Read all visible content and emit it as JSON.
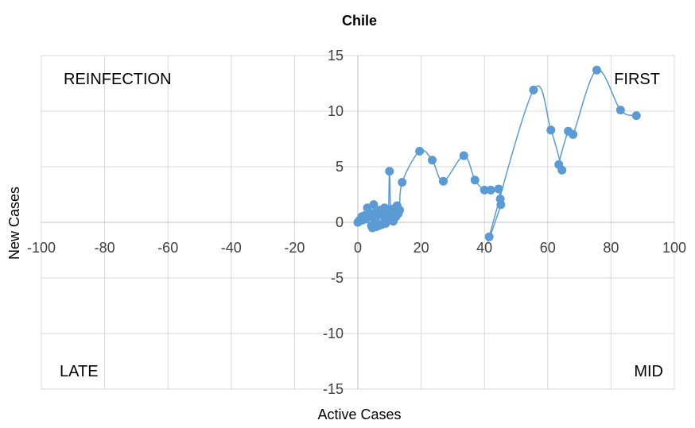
{
  "chart_data": {
    "type": "scatter",
    "title": "Chile",
    "xlabel": "Active Cases",
    "ylabel": "New Cases",
    "xlim": [
      -100,
      100
    ],
    "ylim": [
      -15,
      15
    ],
    "x_ticks": [
      -100,
      -80,
      -60,
      -40,
      -20,
      0,
      20,
      40,
      60,
      80,
      100
    ],
    "y_ticks": [
      -15,
      -10,
      -5,
      0,
      5,
      10,
      15
    ],
    "x_tick_labels": [
      "-100",
      "-80",
      "-60",
      "-40",
      "-20",
      "0",
      "20",
      "40",
      "60",
      "80",
      "100"
    ],
    "y_tick_labels": [
      "-15",
      "-10",
      "-5",
      "0",
      "5",
      "10",
      "15"
    ],
    "grid": true,
    "color": "#5b9bd5",
    "quadrant_labels": [
      "REINFECTION",
      "FIRST",
      "LATE",
      "MID"
    ],
    "series": [
      {
        "connected": true,
        "points": [
          {
            "x": 0,
            "y": 0
          },
          {
            "x": 0.3,
            "y": 0.1
          },
          {
            "x": 0.6,
            "y": 0.2
          },
          {
            "x": 0.9,
            "y": 0.3
          },
          {
            "x": 1.2,
            "y": 0.5
          },
          {
            "x": 1.5,
            "y": 0.2
          },
          {
            "x": 2.0,
            "y": 0.6
          },
          {
            "x": 2.5,
            "y": 0.3
          },
          {
            "x": 3.0,
            "y": 1.3
          },
          {
            "x": 3.5,
            "y": 0.5
          },
          {
            "x": 4.0,
            "y": 0.8
          },
          {
            "x": 4.3,
            "y": -0.3
          },
          {
            "x": 4.6,
            "y": -0.5
          },
          {
            "x": 5.0,
            "y": 1.6
          },
          {
            "x": 5.3,
            "y": 0.4
          },
          {
            "x": 5.7,
            "y": -0.4
          },
          {
            "x": 6.2,
            "y": 0.9
          },
          {
            "x": 6.6,
            "y": -0.3
          },
          {
            "x": 7.0,
            "y": 1.1
          },
          {
            "x": 7.5,
            "y": -0.2
          },
          {
            "x": 8.0,
            "y": 0.6
          },
          {
            "x": 8.4,
            "y": 1.3
          },
          {
            "x": 8.8,
            "y": -0.1
          },
          {
            "x": 9.2,
            "y": 0.5
          },
          {
            "x": 9.7,
            "y": 1.0
          },
          {
            "x": 10.0,
            "y": 4.6
          },
          {
            "x": 10.4,
            "y": 0.3
          },
          {
            "x": 10.8,
            "y": 1.2
          },
          {
            "x": 11.2,
            "y": 0.1
          },
          {
            "x": 11.6,
            "y": 0.9
          },
          {
            "x": 12.0,
            "y": 0.5
          },
          {
            "x": 12.4,
            "y": 1.5
          },
          {
            "x": 12.8,
            "y": 0.8
          },
          {
            "x": 13.2,
            "y": 1.1
          },
          {
            "x": 14.0,
            "y": 3.6
          },
          {
            "x": 19.5,
            "y": 6.4
          },
          {
            "x": 23.5,
            "y": 5.6
          },
          {
            "x": 27.0,
            "y": 3.7
          },
          {
            "x": 33.5,
            "y": 6.0
          },
          {
            "x": 37.0,
            "y": 3.8
          },
          {
            "x": 40.0,
            "y": 2.9
          },
          {
            "x": 42.0,
            "y": 2.9
          },
          {
            "x": 44.5,
            "y": 3.0
          },
          {
            "x": 45.0,
            "y": 2.1
          },
          {
            "x": 45.2,
            "y": 1.6
          },
          {
            "x": 41.5,
            "y": -1.3
          },
          {
            "x": 55.5,
            "y": 11.9
          },
          {
            "x": 61.0,
            "y": 8.3
          },
          {
            "x": 64.5,
            "y": 4.7
          },
          {
            "x": 63.5,
            "y": 5.2
          },
          {
            "x": 66.5,
            "y": 8.2
          },
          {
            "x": 68.0,
            "y": 7.9
          },
          {
            "x": 75.5,
            "y": 13.7
          },
          {
            "x": 83.0,
            "y": 10.1
          },
          {
            "x": 88.0,
            "y": 9.6
          }
        ]
      }
    ]
  }
}
